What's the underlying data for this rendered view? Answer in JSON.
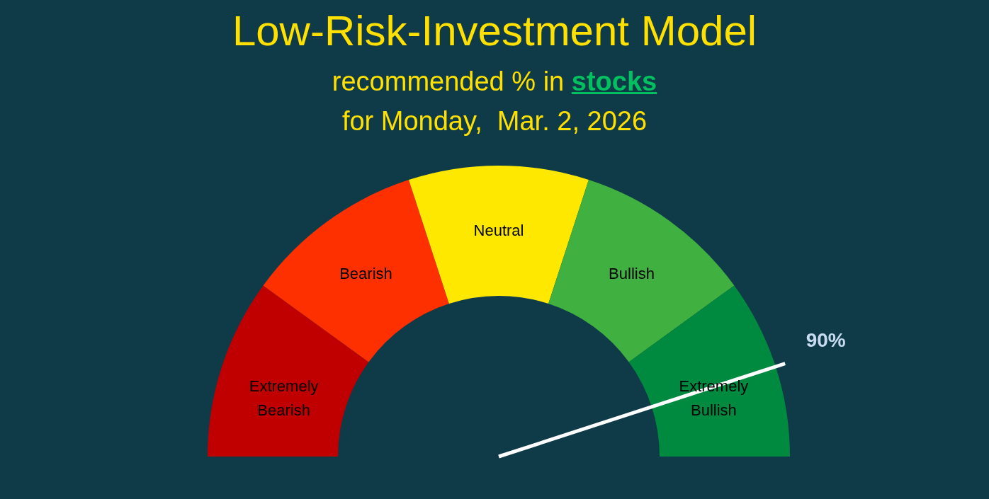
{
  "chart_data": {
    "type": "donut",
    "title": "Low-Risk-Investment Model",
    "subtitle": "recommended % in stocks",
    "annotations": [
      "for Monday,  Mar. 2, 2026",
      "90%"
    ],
    "categories": [
      "Extremely Bearish",
      "Bearish",
      "Neutral",
      "Bullish",
      "Extremely Bullish"
    ],
    "values": [
      20,
      20,
      20,
      20,
      20
    ],
    "colors": [
      "#c00000",
      "#ff3000",
      "#ffe800",
      "#40b040",
      "#008a40"
    ],
    "needle": "Extremely Bullish"
  }
}
